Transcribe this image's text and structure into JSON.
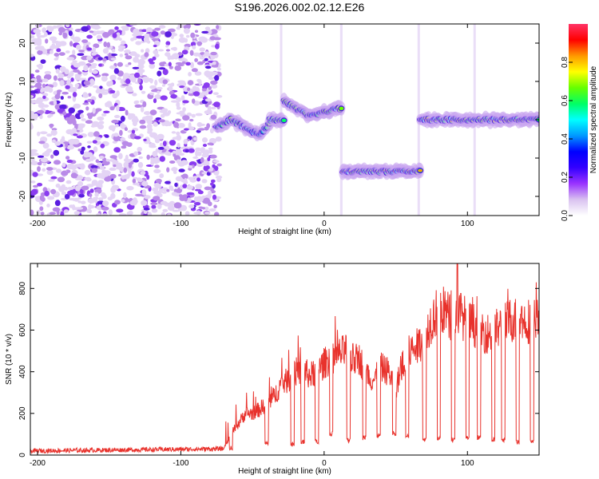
{
  "title": "S196.2026.002.02.12.E26",
  "chart_data": [
    {
      "type": "heatmap",
      "name": "spectrogram",
      "xlabel": "Height of straight line (km)",
      "ylabel": "Frequency (Hz)",
      "xlim": [
        -205,
        150
      ],
      "ylim": [
        -25,
        25
      ],
      "xticks": [
        -200,
        -100,
        0,
        100
      ],
      "yticks": [
        -20,
        -10,
        0,
        10,
        20
      ],
      "colorbar": {
        "label": "Normalized spectral amplitude",
        "range": [
          0,
          1
        ],
        "ticks": [
          "0.0",
          "0.2",
          "0.4",
          "0.6",
          "0.8"
        ],
        "tick_values": [
          0.0,
          0.2,
          0.4,
          0.6,
          0.8
        ],
        "colors": [
          "#ffffff",
          "#d9c2f0",
          "#9933ff",
          "#3300ff",
          "#0000ff",
          "#0099ff",
          "#00ffff",
          "#00ff66",
          "#66ff00",
          "#ffff00",
          "#ff9900",
          "#ff0000",
          "#ff3366"
        ]
      },
      "noise_region": {
        "x": [
          -205,
          -73
        ],
        "y": [
          -25,
          25
        ],
        "level": 0.15
      },
      "tracks": [
        {
          "x": [
            -75,
            -65,
            -55,
            -45,
            -38
          ],
          "y": [
            -2,
            0,
            -2,
            -4,
            -1
          ],
          "peak": 0.45
        },
        {
          "x": [
            -38,
            -28
          ],
          "y": [
            0,
            0
          ],
          "peak": 0.7
        },
        {
          "x": [
            -28,
            -20,
            -10,
            0,
            12
          ],
          "y": [
            5,
            3,
            1,
            2,
            3
          ],
          "peak": 0.75
        },
        {
          "x": [
            13,
            67
          ],
          "y": [
            -13.5,
            -13.5
          ],
          "peak": 0.9
        },
        {
          "x": [
            67,
            150
          ],
          "y": [
            0,
            0
          ],
          "peak": 0.88
        }
      ],
      "vertical_streaks": [
        {
          "x": 12,
          "y": [
            -25,
            25
          ]
        },
        {
          "x": 66,
          "y": [
            -25,
            25
          ]
        },
        {
          "x": -30,
          "y": [
            -25,
            25
          ]
        },
        {
          "x": 105,
          "y": [
            -25,
            25
          ]
        }
      ]
    },
    {
      "type": "line",
      "name": "snr",
      "xlabel": "Height of straight line (km)",
      "ylabel": "SNR (10 * v/v)",
      "xlim": [
        -205,
        150
      ],
      "ylim": [
        0,
        920
      ],
      "xticks": [
        -200,
        -100,
        0,
        100
      ],
      "yticks": [
        0,
        200,
        400,
        600,
        800
      ],
      "color": "#e8322c",
      "series": [
        {
          "name": "SNR",
          "x": [
            -205,
            -70,
            -65,
            -60,
            -55,
            -50,
            -45,
            -40,
            -35,
            -30,
            -25,
            -20,
            -15,
            -10,
            -5,
            0,
            5,
            10,
            15,
            20,
            25,
            30,
            35,
            40,
            45,
            50,
            55,
            60,
            65,
            70,
            75,
            80,
            85,
            90,
            95,
            100,
            105,
            110,
            115,
            120,
            125,
            130,
            135,
            140,
            145,
            150
          ],
          "values": [
            20,
            30,
            100,
            150,
            200,
            200,
            220,
            250,
            280,
            340,
            360,
            400,
            410,
            380,
            400,
            440,
            470,
            480,
            500,
            460,
            460,
            380,
            360,
            420,
            400,
            320,
            440,
            500,
            520,
            570,
            650,
            700,
            690,
            640,
            680,
            640,
            620,
            600,
            580,
            600,
            620,
            650,
            650,
            640,
            650,
            640
          ]
        }
      ],
      "spike": {
        "x": 93,
        "y": 920
      },
      "dips": [
        -65,
        -40,
        -22,
        -15,
        -5,
        5,
        17,
        28,
        38,
        49,
        58,
        70,
        80,
        90,
        100,
        108,
        118,
        125,
        135,
        145
      ],
      "dip_levels": [
        20,
        40,
        40,
        50,
        50,
        90,
        60,
        70,
        80,
        90,
        80,
        60,
        70,
        60,
        70,
        70,
        60,
        60,
        50,
        50
      ]
    }
  ]
}
